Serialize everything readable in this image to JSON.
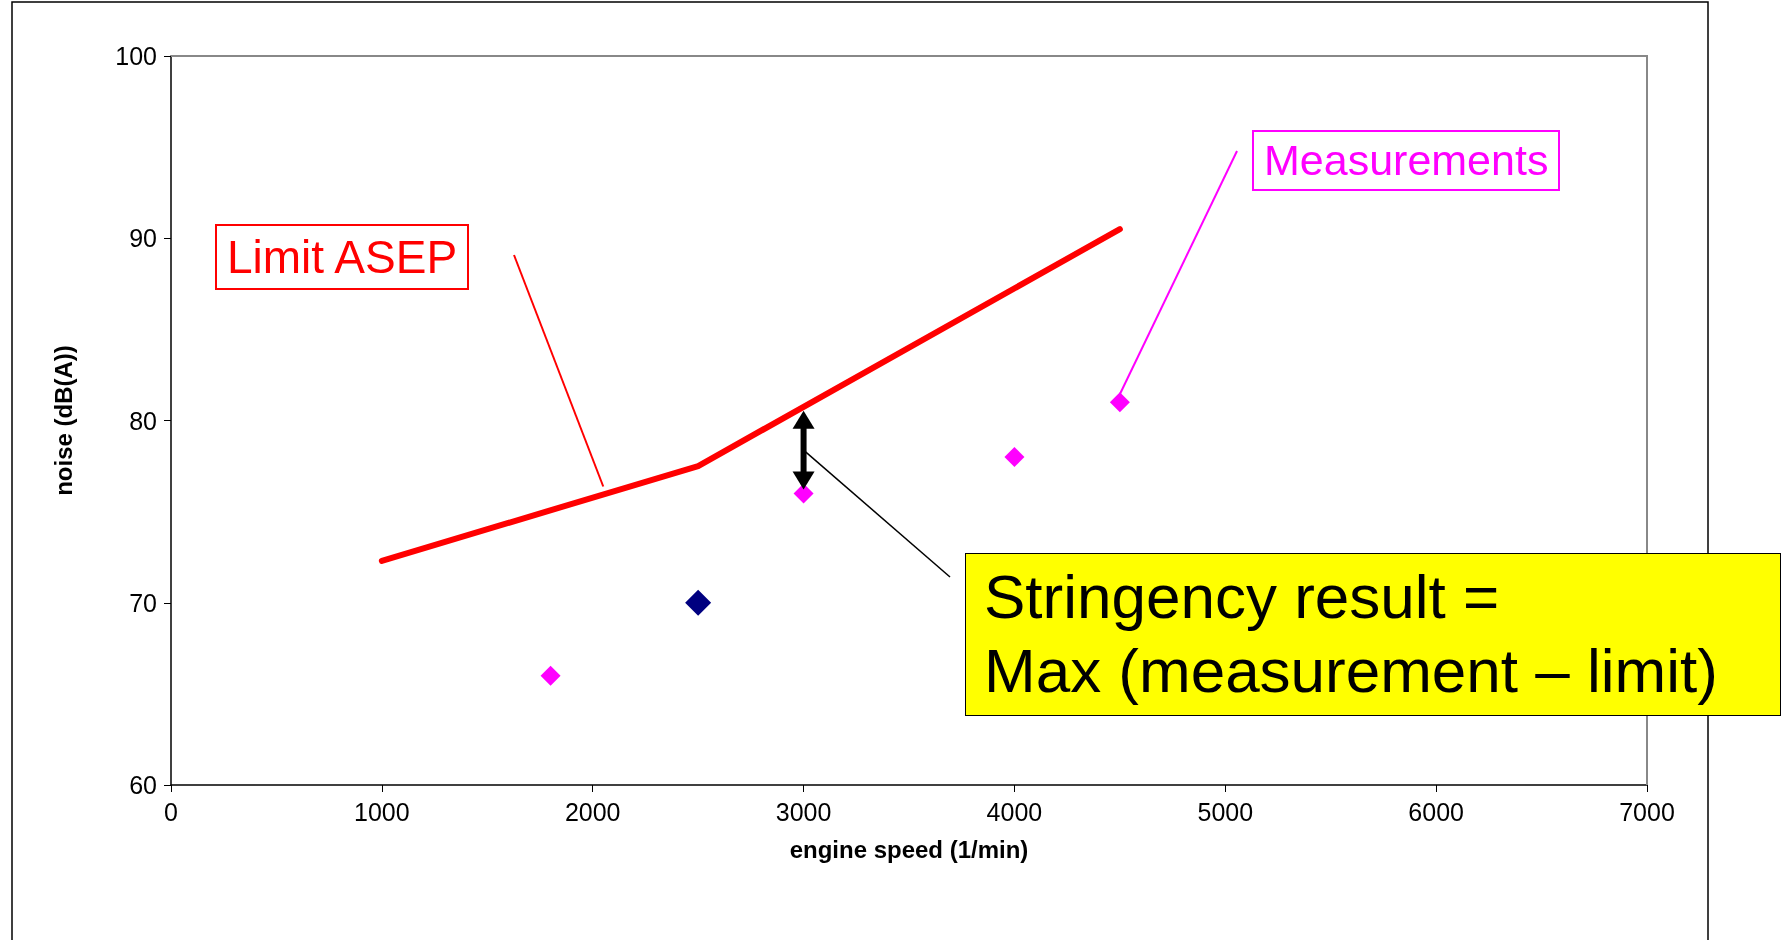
{
  "chart_data": {
    "type": "scatter",
    "xlabel": "engine speed (1/min)",
    "ylabel": "noise (dB(A))",
    "xlim": [
      0,
      7000
    ],
    "xticks": [
      0,
      1000,
      2000,
      3000,
      4000,
      5000,
      6000,
      7000
    ],
    "ylim": [
      60,
      100
    ],
    "yticks": [
      60,
      70,
      80,
      90,
      100
    ],
    "grid": false,
    "legend": false,
    "marker": "diamond",
    "series": [
      {
        "name": "Limit ASEP",
        "type": "line",
        "color": "#ff0000",
        "x": [
          1000,
          2500,
          4500
        ],
        "values": [
          72.3,
          77.5,
          90.5
        ],
        "marker": "none",
        "line_style": "solid"
      },
      {
        "name": "Measurements",
        "color": "#ff00ff",
        "x": [
          1800,
          3000,
          4000,
          4500
        ],
        "values": [
          66,
          76,
          78,
          81
        ]
      },
      {
        "color": "#000080",
        "x": [
          2500
        ],
        "values": [
          70
        ]
      }
    ],
    "annotations": [
      "Stringency result =\nMax (measurement – limit)"
    ]
  }
}
